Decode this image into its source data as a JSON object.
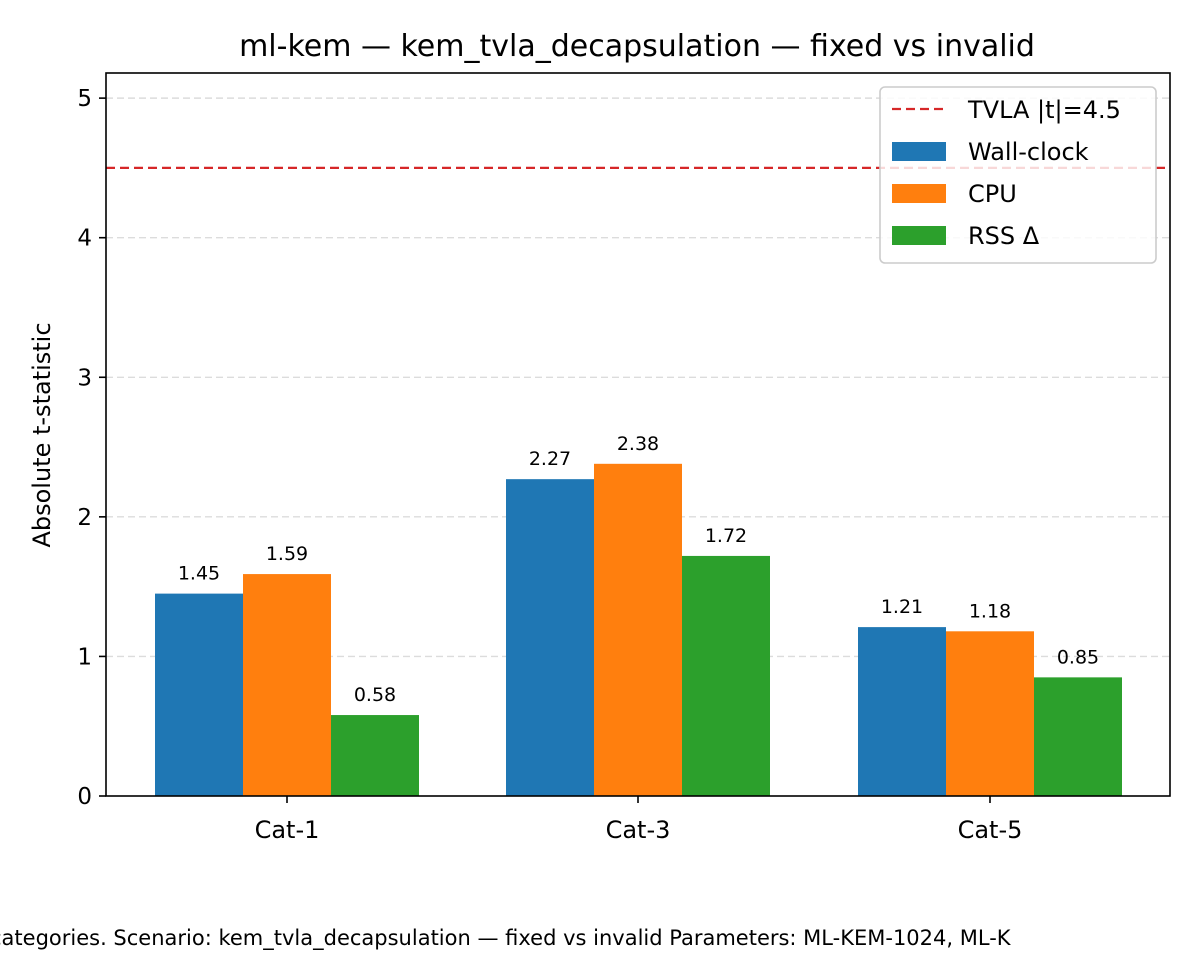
{
  "chart_data": {
    "type": "bar",
    "title": "ml-kem — kem_tvla_decapsulation — fixed vs invalid",
    "xlabel": "",
    "ylabel": "Absolute t-statistic",
    "categories": [
      "Cat-1",
      "Cat-3",
      "Cat-5"
    ],
    "series": [
      {
        "name": "Wall-clock",
        "color": "#1f77b4",
        "values": [
          1.45,
          2.27,
          1.21
        ]
      },
      {
        "name": "CPU",
        "color": "#ff7f0e",
        "values": [
          1.59,
          2.38,
          1.18
        ]
      },
      {
        "name": "RSS Δ",
        "color": "#2ca02c",
        "values": [
          0.58,
          1.72,
          0.85
        ]
      }
    ],
    "data_labels": [
      [
        "1.45",
        "2.27",
        "1.21"
      ],
      [
        "1.59",
        "2.38",
        "1.18"
      ],
      [
        "0.58",
        "1.72",
        "0.85"
      ]
    ],
    "ylim": [
      0,
      5.18
    ],
    "yticks": [
      "0",
      "1",
      "2",
      "3",
      "4",
      "5"
    ],
    "threshold": {
      "label": "TVLA |t|=4.5",
      "value": 4.5,
      "color": "#d62728"
    },
    "grid": "y-dashed",
    "legend_position": "top-right"
  },
  "caption": "categories. Scenario: kem_tvla_decapsulation — fixed vs invalid Parameters: ML-KEM-1024, ML-K"
}
